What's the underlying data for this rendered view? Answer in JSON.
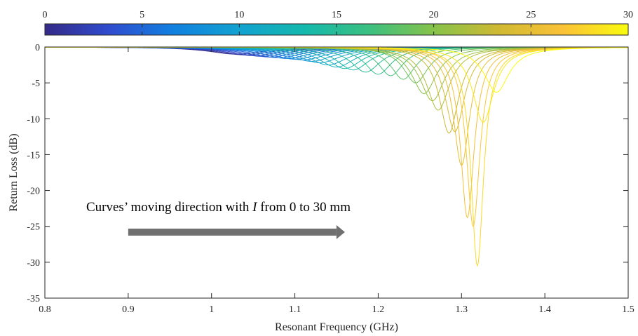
{
  "chart_data": {
    "type": "line",
    "title": "",
    "xlabel": "Resonant Frequency (GHz)",
    "ylabel": "Return Loss (dB)",
    "xlim": [
      0.8,
      1.5
    ],
    "ylim": [
      -35,
      0
    ],
    "xticks": [
      "0.8",
      "0.9",
      "1",
      "1.1",
      "1.2",
      "1.3",
      "1.4",
      "1.5"
    ],
    "yticks": [
      "0",
      "-5",
      "-10",
      "-15",
      "-20",
      "-25",
      "-30",
      "-35"
    ],
    "grid": false,
    "colorbar": {
      "min": 0,
      "max": 30,
      "ticks": [
        "0",
        "5",
        "10",
        "15",
        "20",
        "25",
        "30"
      ],
      "colormap": "parula",
      "colors": [
        "#352a87",
        "#2f4ccf",
        "#1181e0",
        "#12a2d0",
        "#14b9ad",
        "#3bc081",
        "#86c34a",
        "#cfb932",
        "#fbc237",
        "#f9fb0e"
      ]
    },
    "series_parameter": "I (mm)",
    "series": [
      {
        "I": 0,
        "f0": 1.03,
        "min_db": -1.0
      },
      {
        "I": 1,
        "f0": 1.04,
        "min_db": -1.1
      },
      {
        "I": 2,
        "f0": 1.05,
        "min_db": -1.2
      },
      {
        "I": 3,
        "f0": 1.06,
        "min_db": -1.3
      },
      {
        "I": 4,
        "f0": 1.07,
        "min_db": -1.4
      },
      {
        "I": 5,
        "f0": 1.08,
        "min_db": -1.5
      },
      {
        "I": 6,
        "f0": 1.09,
        "min_db": -1.6
      },
      {
        "I": 7,
        "f0": 1.1,
        "min_db": -1.7
      },
      {
        "I": 8,
        "f0": 1.11,
        "min_db": -1.8
      },
      {
        "I": 9,
        "f0": 1.12,
        "min_db": -2.0
      },
      {
        "I": 10,
        "f0": 1.13,
        "min_db": -2.2
      },
      {
        "I": 11,
        "f0": 1.14,
        "min_db": -2.5
      },
      {
        "I": 12,
        "f0": 1.15,
        "min_db": -2.8
      },
      {
        "I": 13,
        "f0": 1.16,
        "min_db": -3.0
      },
      {
        "I": 14,
        "f0": 1.17,
        "min_db": -3.2
      },
      {
        "I": 15,
        "f0": 1.185,
        "min_db": -3.5
      },
      {
        "I": 16,
        "f0": 1.2,
        "min_db": -3.8
      },
      {
        "I": 17,
        "f0": 1.215,
        "min_db": -4.0
      },
      {
        "I": 18,
        "f0": 1.23,
        "min_db": -4.5
      },
      {
        "I": 19,
        "f0": 1.245,
        "min_db": -5.0
      },
      {
        "I": 20,
        "f0": 1.255,
        "min_db": -6.5
      },
      {
        "I": 21,
        "f0": 1.265,
        "min_db": -7.5
      },
      {
        "I": 22,
        "f0": 1.272,
        "min_db": -8.8
      },
      {
        "I": 23,
        "f0": 1.285,
        "min_db": -12.0
      },
      {
        "I": 24,
        "f0": 1.292,
        "min_db": -11.8
      },
      {
        "I": 25,
        "f0": 1.3,
        "min_db": -16.5
      },
      {
        "I": 26,
        "f0": 1.307,
        "min_db": -23.8
      },
      {
        "I": 27,
        "f0": 1.314,
        "min_db": -25.0
      },
      {
        "I": 28,
        "f0": 1.319,
        "min_db": -30.5
      },
      {
        "I": 29,
        "f0": 1.326,
        "min_db": -10.5
      },
      {
        "I": 30,
        "f0": 1.342,
        "min_db": -6.3
      }
    ],
    "annotation": {
      "text_before": "Curves’ moving direction with ",
      "text_italic": "I",
      "text_after": " from 0 to 30 mm",
      "arrow_from_x": 0.9,
      "arrow_to_x": 1.16,
      "arrow_y": -25.8,
      "arrow_color": "#707070"
    }
  }
}
